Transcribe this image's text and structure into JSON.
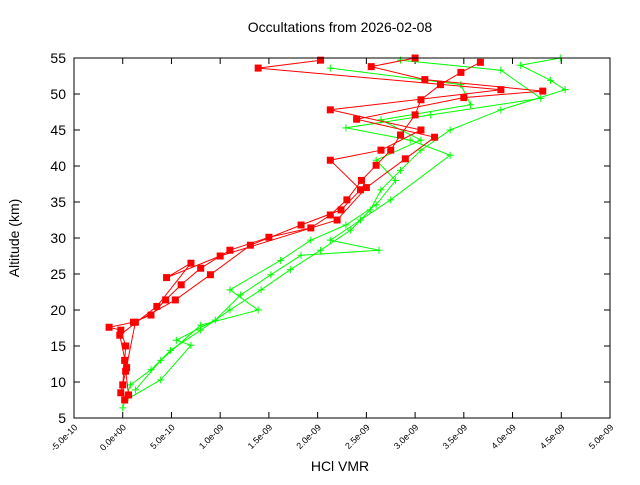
{
  "chart_data": {
    "type": "line",
    "title": "Occultations from 2026-02-08",
    "xlabel": "HCl VMR",
    "ylabel": "Altitude (km)",
    "xlim": [
      -5e-10,
      5e-09
    ],
    "ylim": [
      5,
      55
    ],
    "x_tick_labels": [
      "-5.0e-10",
      "0.0e+00",
      "5.0e-10",
      "1.0e-09",
      "1.5e-09",
      "2.0e-09",
      "2.5e-09",
      "3.0e-09",
      "3.5e-09",
      "4.0e-09",
      "4.5e-09",
      "5.0e-09"
    ],
    "x_ticks": [
      -5e-10,
      0,
      5e-10,
      1e-09,
      1.5e-09,
      2e-09,
      2.5e-09,
      3e-09,
      3.5e-09,
      4e-09,
      4.5e-09,
      5e-09
    ],
    "y_ticks": [
      5,
      10,
      15,
      20,
      25,
      30,
      35,
      40,
      45,
      50,
      55
    ],
    "grid": false,
    "series": [
      {
        "color": "#00ff00",
        "marker": "plus",
        "profiles": [
          [
            [
              0,
              6.4
            ],
            [
              8e-11,
              9.6
            ],
            [
              2.9e-10,
              11.7
            ],
            [
              4.9e-10,
              14.4
            ],
            [
              8e-10,
              17.2
            ],
            [
              1.1e-09,
              20
            ],
            [
              1.42e-09,
              22.8
            ],
            [
              1.72e-09,
              25.6
            ],
            [
              2.03e-09,
              28.3
            ],
            [
              2.34e-09,
              31.1
            ],
            [
              2.54e-09,
              33.9
            ],
            [
              2.65e-09,
              36.7
            ],
            [
              2.85e-09,
              39.4
            ],
            [
              3.06e-09,
              42.2
            ],
            [
              3.36e-09,
              45
            ],
            [
              3.88e-09,
              47.8
            ],
            [
              4.54e-09,
              50.6
            ],
            [
              4.39e-09,
              51.9
            ],
            [
              4.08e-09,
              54
            ],
            [
              4.49e-09,
              55
            ]
          ],
          [
            [
              3e-11,
              7.5
            ],
            [
              3.9e-10,
              10.3
            ],
            [
              7e-10,
              15.1
            ],
            [
              5.5e-10,
              15.8
            ],
            [
              9.5e-10,
              18.6
            ],
            [
              1.21e-09,
              22.1
            ],
            [
              1.52e-09,
              24.9
            ],
            [
              1.83e-09,
              27.6
            ],
            [
              2.63e-09,
              28.3
            ],
            [
              2.13e-09,
              29.7
            ],
            [
              2.44e-09,
              32.5
            ],
            [
              2.75e-09,
              35.3
            ],
            [
              3.36e-09,
              41.5
            ],
            [
              2.95e-09,
              43.6
            ],
            [
              2.29e-09,
              45.3
            ],
            [
              3.16e-09,
              47.1
            ],
            [
              4.29e-09,
              49.4
            ],
            [
              3.88e-09,
              53.3
            ],
            [
              2.85e-09,
              54.7
            ]
          ],
          [
            [
              1.3e-10,
              8.9
            ],
            [
              3.9e-10,
              13
            ],
            [
              8e-10,
              17.9
            ],
            [
              1.39e-09,
              20
            ],
            [
              1.1e-09,
              22.8
            ],
            [
              1.62e-09,
              26.9
            ],
            [
              1.93e-09,
              29.7
            ],
            [
              2.29e-09,
              31.8
            ],
            [
              2.6e-09,
              34.6
            ],
            [
              2.8e-09,
              38
            ],
            [
              2.6e-09,
              40.8
            ],
            [
              3.06e-09,
              43.6
            ],
            [
              2.65e-09,
              46.4
            ],
            [
              3.57e-09,
              48.5
            ],
            [
              3.47e-09,
              51.3
            ],
            [
              2.13e-09,
              53.6
            ]
          ]
        ]
      },
      {
        "color": "#ff0000",
        "marker": "square",
        "profiles": [
          [
            [
              2e-11,
              7.5
            ],
            [
              0,
              9.6
            ],
            [
              2e-11,
              13
            ],
            [
              3e-11,
              15
            ],
            [
              -2e-11,
              17.2
            ],
            [
              -1.4e-10,
              17.6
            ],
            [
              1.1e-10,
              18.3
            ],
            [
              2.9e-10,
              19.3
            ],
            [
              4.4e-10,
              21.4
            ],
            [
              6e-10,
              23.5
            ],
            [
              8e-10,
              25.8
            ],
            [
              1.1e-09,
              28.3
            ],
            [
              1.5e-09,
              30.1
            ],
            [
              1.93e-09,
              31.4
            ],
            [
              2.13e-09,
              33.2
            ],
            [
              2.3e-09,
              35.3
            ],
            [
              2.45e-09,
              38
            ],
            [
              2.6e-09,
              40.1
            ],
            [
              2.75e-09,
              42.2
            ],
            [
              2.85e-09,
              44.3
            ],
            [
              3e-09,
              47.1
            ],
            [
              3.06e-09,
              49.2
            ],
            [
              3.26e-09,
              51.3
            ],
            [
              3.47e-09,
              53
            ],
            [
              3.67e-09,
              54.4
            ]
          ],
          [
            [
              6e-11,
              8.2
            ],
            [
              3e-11,
              11.5
            ],
            [
              1.3e-10,
              18.3
            ],
            [
              5.4e-10,
              21.4
            ],
            [
              9e-10,
              24.9
            ],
            [
              1.31e-09,
              29
            ],
            [
              1.83e-09,
              31.8
            ],
            [
              2.24e-09,
              33.9
            ],
            [
              2.44e-09,
              36.7
            ],
            [
              2.13e-09,
              40.8
            ],
            [
              2.65e-09,
              42.2
            ],
            [
              3.06e-09,
              45
            ],
            [
              2.13e-09,
              47.8
            ],
            [
              3.88e-09,
              50.6
            ],
            [
              1.39e-09,
              53.6
            ],
            [
              2.03e-09,
              54.7
            ]
          ],
          [
            [
              -2e-11,
              8.5
            ],
            [
              4e-11,
              12
            ],
            [
              -3e-11,
              16.5
            ],
            [
              3.5e-10,
              20.5
            ],
            [
              7e-10,
              26.5
            ],
            [
              4.5e-10,
              24.5
            ],
            [
              1e-09,
              27.5
            ],
            [
              2.2e-09,
              32.5
            ],
            [
              2.5e-09,
              37
            ],
            [
              2.9e-09,
              41
            ],
            [
              3.2e-09,
              44
            ],
            [
              2.4e-09,
              46.5
            ],
            [
              3.5e-09,
              49.5
            ],
            [
              4.31e-09,
              50.4
            ],
            [
              3.1e-09,
              52
            ],
            [
              2.55e-09,
              53.8
            ],
            [
              3e-09,
              55
            ]
          ]
        ]
      }
    ]
  }
}
